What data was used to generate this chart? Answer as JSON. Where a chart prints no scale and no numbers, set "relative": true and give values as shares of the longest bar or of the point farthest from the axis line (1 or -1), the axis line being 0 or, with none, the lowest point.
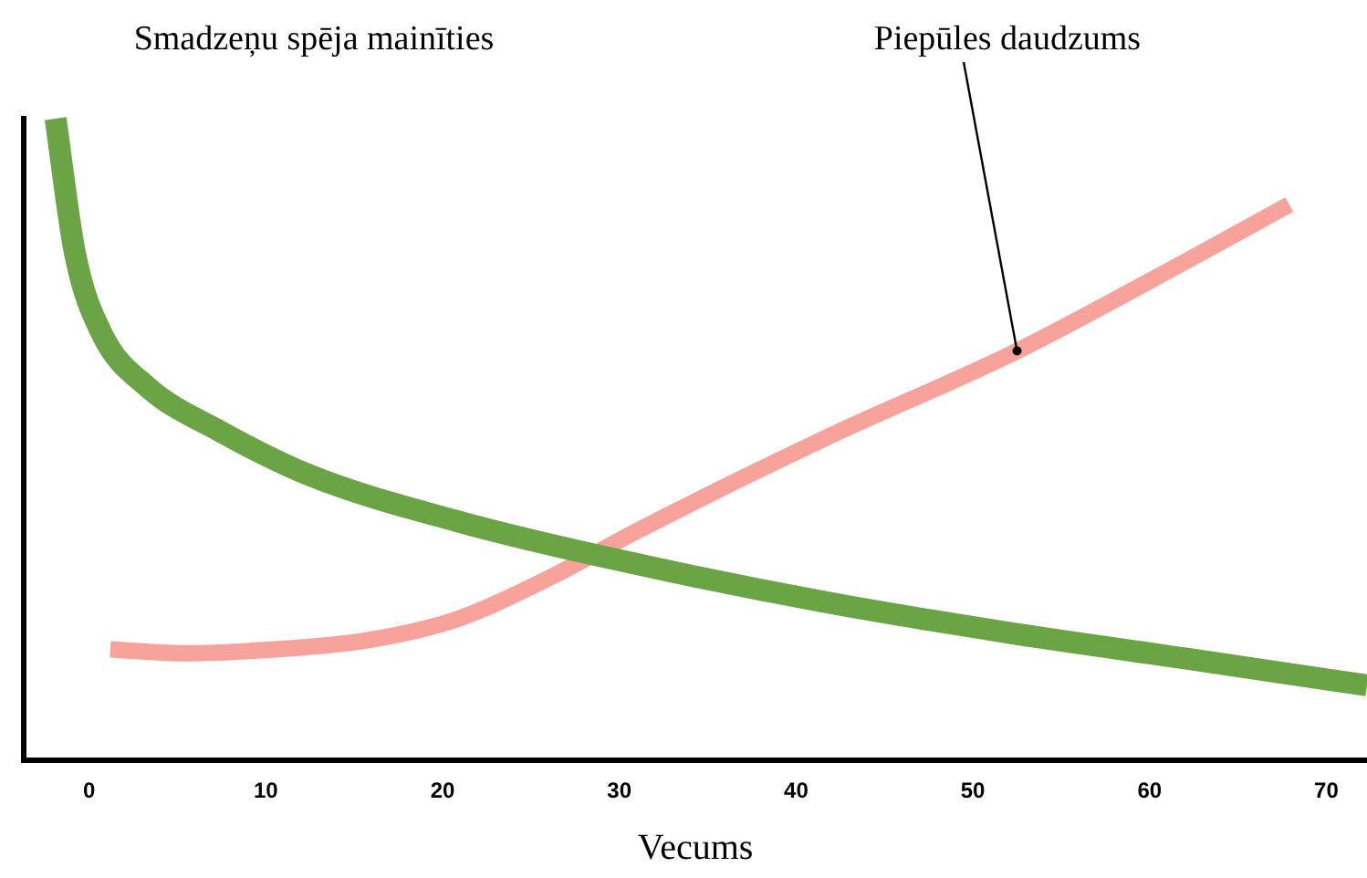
{
  "chart_data": {
    "type": "line",
    "xlabel": "Vecums",
    "relative": true,
    "xlim": [
      -3.7,
      72.3
    ],
    "xticks": [
      0,
      10,
      20,
      30,
      40,
      50,
      60,
      70
    ],
    "grid": false,
    "annotations": [
      {
        "text": "Piepūles daudzums",
        "x": 52.5,
        "y": 0.638
      }
    ],
    "legend": false,
    "marker": "none",
    "line_style": "solid",
    "series": [
      {
        "name": "Smadzeņu spēja mainīties",
        "color": "#6aa445",
        "x": [
          -1.9,
          -0.8,
          0.7,
          3.3,
          7.4,
          12.6,
          20.8,
          29,
          41.4,
          51.8,
          62,
          72.3
        ],
        "values": [
          1.0,
          0.79,
          0.666,
          0.582,
          0.513,
          0.443,
          0.373,
          0.318,
          0.248,
          0.2,
          0.159,
          0.117
        ]
      },
      {
        "color": "#f7a39c",
        "x": [
          1.2,
          5.4,
          10.5,
          15.7,
          20.8,
          26,
          31.1,
          41.4,
          52.5,
          62,
          67.9
        ],
        "values": [
          0.173,
          0.167,
          0.173,
          0.187,
          0.22,
          0.284,
          0.359,
          0.499,
          0.638,
          0.777,
          0.866
        ]
      }
    ]
  }
}
